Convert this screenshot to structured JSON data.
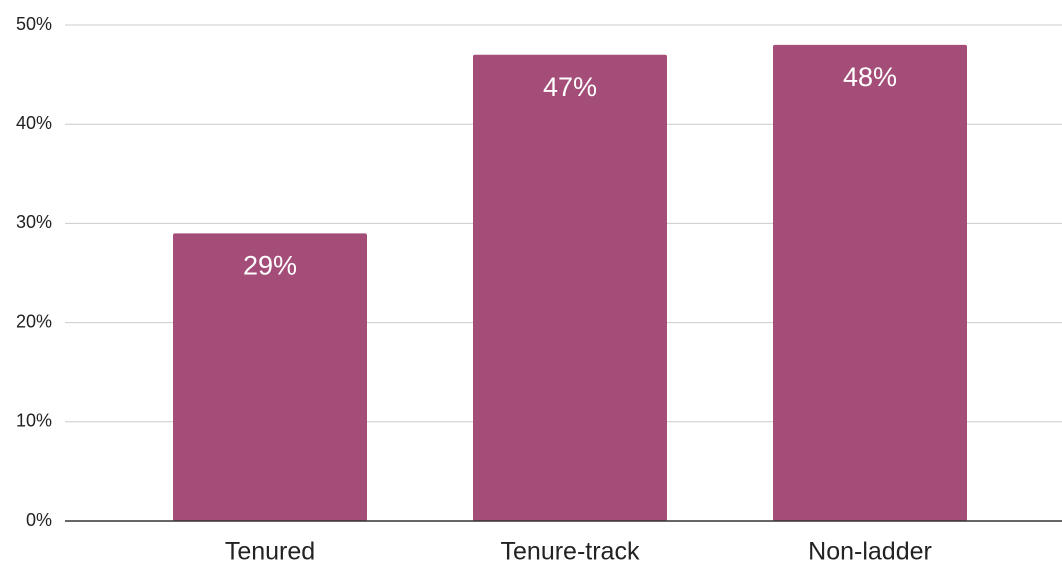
{
  "chart_data": {
    "type": "bar",
    "categories": [
      "Tenured",
      "Tenure-track",
      "Non-ladder"
    ],
    "values": [
      29,
      47,
      48
    ],
    "value_labels": [
      "29%",
      "47%",
      "48%"
    ],
    "color": "#a34d78",
    "ylim": [
      0,
      50
    ],
    "yticks": [
      {
        "value": 0,
        "label": "0%"
      },
      {
        "value": 10,
        "label": "10%"
      },
      {
        "value": 20,
        "label": "20%"
      },
      {
        "value": 30,
        "label": "30%"
      },
      {
        "value": 40,
        "label": "40%"
      },
      {
        "value": 50,
        "label": "50%"
      }
    ],
    "grid": true
  }
}
